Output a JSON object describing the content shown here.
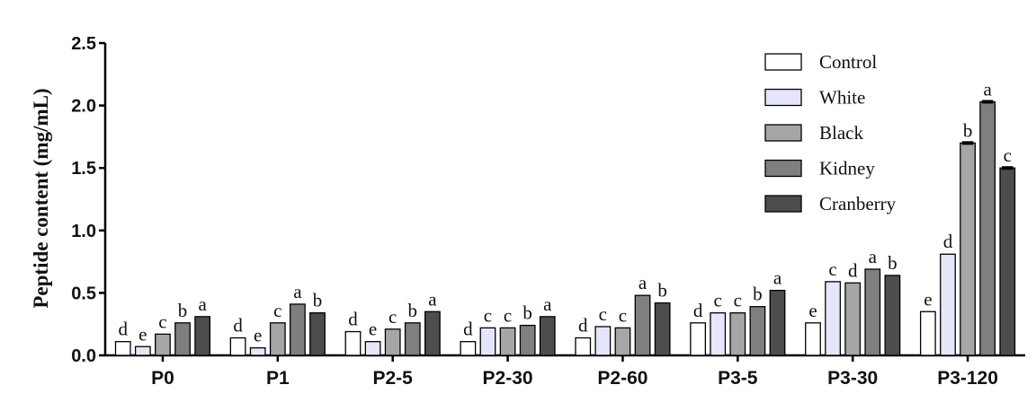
{
  "chart_data": {
    "type": "bar",
    "title": "",
    "xlabel": "",
    "ylabel": "Peptide content (mg/mL)",
    "ylim": [
      0,
      2.5
    ],
    "yticks": [
      "0.0",
      "0.5",
      "1.0",
      "1.5",
      "2.0",
      "2.5"
    ],
    "grid": false,
    "legend_position": "top-right",
    "categories": [
      "P0",
      "P1",
      "P2-5",
      "P2-30",
      "P2-60",
      "P3-5",
      "P3-30",
      "P3-120"
    ],
    "series": [
      {
        "name": "Control",
        "color": "#ffffff",
        "values": [
          0.11,
          0.14,
          0.19,
          0.11,
          0.14,
          0.26,
          0.26,
          0.35
        ],
        "labels": [
          "d",
          "d",
          "d",
          "d",
          "d",
          "d",
          "e",
          "e"
        ]
      },
      {
        "name": "White",
        "color": "#e6e6fa",
        "values": [
          0.07,
          0.06,
          0.11,
          0.22,
          0.23,
          0.34,
          0.59,
          0.81
        ],
        "labels": [
          "e",
          "e",
          "e",
          "c",
          "c",
          "c",
          "c",
          "d"
        ]
      },
      {
        "name": "Black",
        "color": "#a6a6a6",
        "values": [
          0.17,
          0.26,
          0.21,
          0.22,
          0.22,
          0.34,
          0.58,
          1.7
        ],
        "labels": [
          "c",
          "c",
          "c",
          "c",
          "c",
          "c",
          "d",
          "b"
        ]
      },
      {
        "name": "Kidney",
        "color": "#7f7f7f",
        "values": [
          0.26,
          0.41,
          0.26,
          0.24,
          0.48,
          0.39,
          0.69,
          2.03
        ],
        "labels": [
          "b",
          "a",
          "b",
          "b",
          "a",
          "b",
          "a",
          "a"
        ]
      },
      {
        "name": "Cranberry",
        "color": "#4d4d4d",
        "values": [
          0.31,
          0.34,
          0.35,
          0.31,
          0.42,
          0.52,
          0.64,
          1.5
        ],
        "labels": [
          "a",
          "b",
          "a",
          "a",
          "b",
          "a",
          "b",
          "c"
        ]
      }
    ]
  }
}
